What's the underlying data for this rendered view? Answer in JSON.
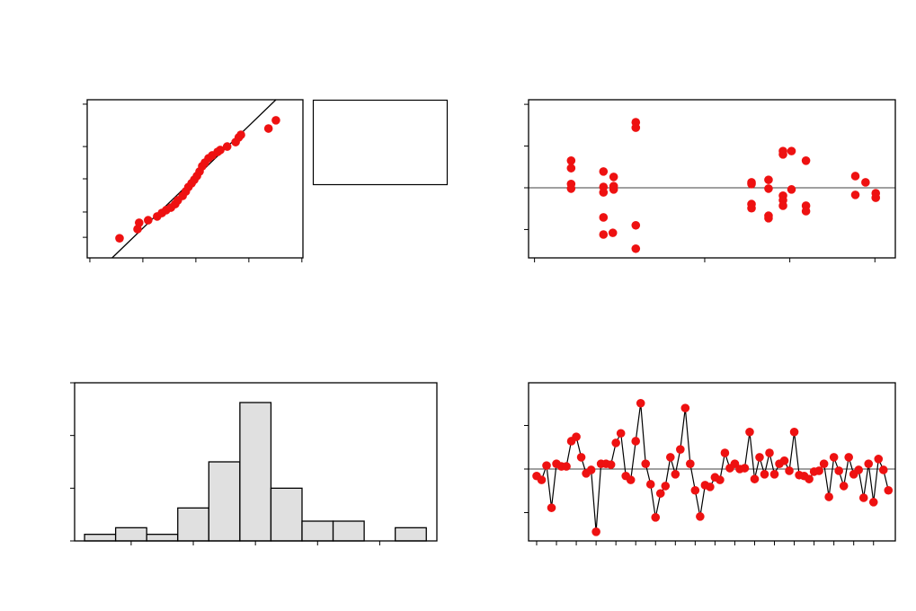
{
  "chart_data": [
    {
      "type": "scatter",
      "color": "#ee1111",
      "x": [
        -1.44,
        -1.1,
        -1.07,
        -0.9,
        -0.73,
        -0.64,
        -0.56,
        -0.47,
        -0.39,
        -0.34,
        -0.25,
        -0.19,
        -0.14,
        -0.08,
        -0.03,
        0.02,
        0.07,
        0.12,
        0.17,
        0.24,
        0.31,
        0.41,
        0.46,
        0.59,
        0.75,
        0.81,
        0.85,
        1.37,
        1.51
      ],
      "values": [
        -1.88,
        -1.59,
        -1.39,
        -1.31,
        -1.19,
        -1.08,
        -0.99,
        -0.91,
        -0.8,
        -0.68,
        -0.54,
        -0.4,
        -0.26,
        -0.14,
        -0.03,
        0.09,
        0.23,
        0.4,
        0.51,
        0.65,
        0.74,
        0.85,
        0.91,
        1.02,
        1.16,
        1.31,
        1.39,
        1.59,
        1.85
      ],
      "fit_line": {
        "x": [
          -1.58,
          1.51
        ],
        "y": [
          -2.5,
          2.5
        ]
      },
      "xlim": [
        -2.05,
        2.02
      ],
      "xticks": [
        -2,
        -1,
        0,
        1,
        2
      ],
      "ylim": [
        -2.5,
        2.5
      ],
      "yticks": [
        -1.85,
        -1.05,
        0,
        1.02,
        2.36
      ]
    },
    {
      "type": "scatter",
      "color": "#ee1111",
      "x": [
        0.43,
        0.43,
        0.43,
        0.43,
        0.81,
        0.81,
        0.81,
        0.81,
        0.81,
        0.93,
        0.93,
        0.93,
        0.92,
        1.19,
        1.19,
        1.19,
        1.19,
        2.55,
        2.55,
        2.55,
        2.55,
        2.75,
        2.75,
        2.75,
        2.75,
        2.92,
        2.92,
        2.92,
        2.92,
        2.92,
        3.02,
        3.02,
        3.19,
        3.19,
        3.19,
        3.77,
        3.77,
        3.89,
        4.01,
        4.01
      ],
      "values": [
        0.65,
        0.47,
        0.09,
        -0.02,
        0.39,
        0.02,
        -0.11,
        -0.71,
        -1.12,
        0.26,
        0.04,
        -0.04,
        -1.08,
        1.57,
        1.44,
        -0.9,
        -1.46,
        0.13,
        0.09,
        -0.39,
        -0.49,
        0.19,
        -0.02,
        -0.67,
        -0.73,
        0.8,
        0.88,
        -0.19,
        -0.3,
        -0.43,
        0.88,
        -0.04,
        0.65,
        -0.43,
        -0.56,
        0.28,
        -0.17,
        0.13,
        -0.13,
        -0.24
      ],
      "refline": 0,
      "xlim": [
        -0.07,
        4.24
      ],
      "xticks": [
        0,
        2,
        3,
        4
      ],
      "ylim": [
        -1.68,
        2.11
      ],
      "yticks": [
        -1,
        0,
        1,
        2
      ]
    },
    {
      "type": "histogram",
      "color": "#e0e0e0",
      "bins": [
        -2.75,
        -2.25,
        -1.75,
        -1.25,
        -0.75,
        -0.25,
        0.25,
        0.75,
        1.25,
        1.75,
        2.25,
        2.75
      ],
      "values": [
        1,
        2,
        1,
        5,
        12,
        21,
        8,
        3,
        3,
        0,
        2
      ],
      "xlim": [
        -2.91,
        2.92
      ],
      "xticks": [
        -2,
        -1,
        0,
        1,
        2
      ],
      "ylim": [
        0,
        24
      ],
      "yticks": [
        0,
        8,
        16,
        24
      ]
    },
    {
      "type": "line",
      "color": "#ee1111",
      "x": [
        1,
        2,
        3,
        4,
        5,
        6,
        7,
        8,
        9,
        10,
        11,
        12,
        13,
        14,
        15,
        16,
        17,
        18,
        19,
        20,
        21,
        22,
        23,
        24,
        25,
        26,
        27,
        28,
        29,
        30,
        31,
        32,
        33,
        34,
        35,
        36,
        37,
        38,
        39,
        40,
        41,
        42,
        43,
        44,
        45,
        46,
        47,
        48,
        49,
        50,
        51,
        52,
        53,
        54,
        55,
        56,
        57,
        58,
        59,
        60,
        61,
        62,
        63,
        64,
        65,
        66,
        67,
        68,
        69,
        70,
        71,
        72
      ],
      "values": [
        -0.16,
        -0.25,
        0.08,
        -0.89,
        0.12,
        0.06,
        0.06,
        0.64,
        0.74,
        0.27,
        -0.1,
        -0.02,
        -1.44,
        0.12,
        0.12,
        0.1,
        0.6,
        0.82,
        -0.16,
        -0.25,
        0.64,
        1.51,
        0.12,
        -0.35,
        -1.11,
        -0.56,
        -0.39,
        0.27,
        -0.12,
        0.45,
        1.4,
        0.12,
        -0.49,
        -1.09,
        -0.37,
        -0.41,
        -0.19,
        -0.25,
        0.37,
        0.02,
        0.12,
        0.0,
        0.02,
        0.85,
        -0.23,
        0.27,
        -0.12,
        0.37,
        -0.12,
        0.12,
        0.19,
        -0.04,
        0.85,
        -0.14,
        -0.16,
        -0.23,
        -0.06,
        -0.04,
        0.12,
        -0.64,
        0.27,
        -0.04,
        -0.39,
        0.27,
        -0.12,
        -0.02,
        -0.66,
        0.12,
        -0.76,
        0.23,
        -0.02,
        -0.49
      ],
      "refline": 0,
      "xlim": [
        -0.63,
        73.4
      ],
      "xticks": [
        1,
        5,
        9,
        13,
        17,
        21,
        25,
        29,
        33,
        37,
        41,
        45,
        49,
        53,
        57,
        61,
        65,
        69
      ],
      "ylim": [
        -1.65,
        1.98
      ],
      "yticks": [
        -1,
        0,
        1
      ]
    }
  ]
}
